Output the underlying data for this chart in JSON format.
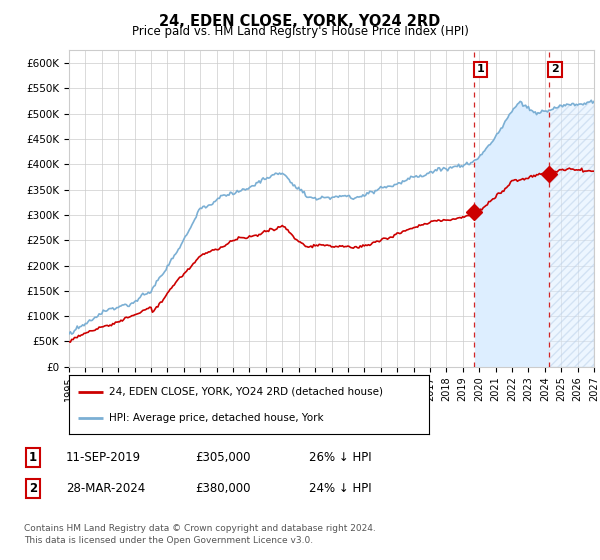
{
  "title": "24, EDEN CLOSE, YORK, YO24 2RD",
  "subtitle": "Price paid vs. HM Land Registry's House Price Index (HPI)",
  "ylim": [
    0,
    625000
  ],
  "yticks": [
    0,
    50000,
    100000,
    150000,
    200000,
    250000,
    300000,
    350000,
    400000,
    450000,
    500000,
    550000,
    600000
  ],
  "hpi_color": "#7bafd4",
  "price_color": "#cc0000",
  "vline_color": "#cc0000",
  "background_color": "#ffffff",
  "grid_color": "#cccccc",
  "sale1_date": 2019.69,
  "sale1_price": 305000,
  "sale1_label": "1",
  "sale2_date": 2024.24,
  "sale2_price": 380000,
  "sale2_label": "2",
  "xmin": 1995,
  "xmax": 2027,
  "legend_line1": "24, EDEN CLOSE, YORK, YO24 2RD (detached house)",
  "legend_line2": "HPI: Average price, detached house, York",
  "note1_box_label": "1",
  "note1_date": "11-SEP-2019",
  "note1_price": "£305,000",
  "note1_hpi": "26% ↓ HPI",
  "note2_box_label": "2",
  "note2_date": "28-MAR-2024",
  "note2_price": "£380,000",
  "note2_hpi": "24% ↓ HPI",
  "footer": "Contains HM Land Registry data © Crown copyright and database right 2024.\nThis data is licensed under the Open Government Licence v3.0.",
  "shaded_fill_color": "#ddeeff",
  "hatch_fill_color": "#ddeeff"
}
